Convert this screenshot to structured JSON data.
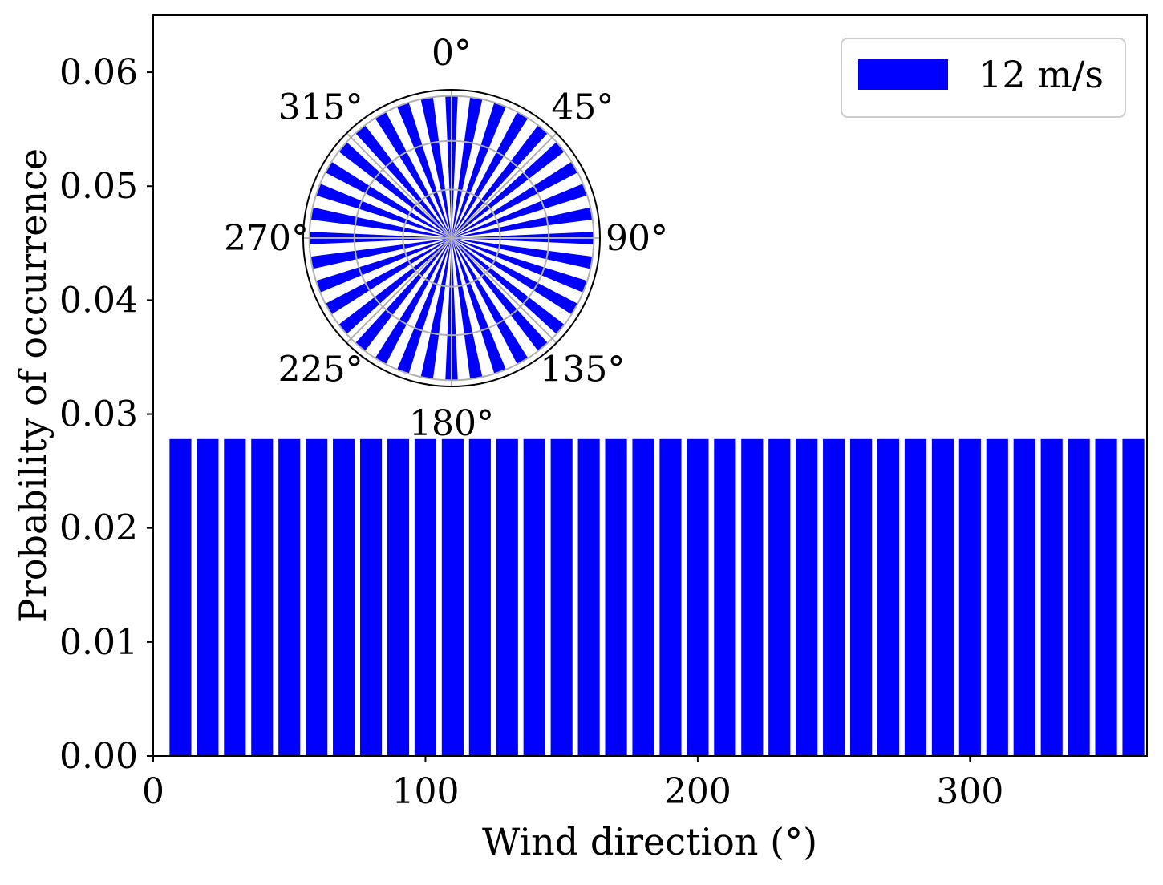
{
  "chart_data": {
    "type": "bar",
    "xlabel": "Wind direction (°)",
    "ylabel": "Probability of occurrence",
    "xlim": [
      0,
      365
    ],
    "ylim": [
      0,
      0.065
    ],
    "x_ticks": [
      {
        "value": 0,
        "label": "0"
      },
      {
        "value": 100,
        "label": "100"
      },
      {
        "value": 200,
        "label": "200"
      },
      {
        "value": 300,
        "label": "300"
      }
    ],
    "y_ticks": [
      {
        "value": 0.0,
        "label": "0.00"
      },
      {
        "value": 0.01,
        "label": "0.01"
      },
      {
        "value": 0.02,
        "label": "0.02"
      },
      {
        "value": 0.03,
        "label": "0.03"
      },
      {
        "value": 0.04,
        "label": "0.04"
      },
      {
        "value": 0.05,
        "label": "0.05"
      },
      {
        "value": 0.06,
        "label": "0.06"
      }
    ],
    "bar_width_deg": 8,
    "grid": false,
    "legend": {
      "position": "top-right",
      "entries": [
        "12 m/s"
      ]
    },
    "series": [
      {
        "name": "12 m/s",
        "color": "#0000ff",
        "x": [
          10,
          20,
          30,
          40,
          50,
          60,
          70,
          80,
          90,
          100,
          110,
          120,
          130,
          140,
          150,
          160,
          170,
          180,
          190,
          200,
          210,
          220,
          230,
          240,
          250,
          260,
          270,
          280,
          290,
          300,
          310,
          320,
          330,
          340,
          350,
          360
        ],
        "values": [
          0.0278,
          0.0278,
          0.0278,
          0.0278,
          0.0278,
          0.0278,
          0.0278,
          0.0278,
          0.0278,
          0.0278,
          0.0278,
          0.0278,
          0.0278,
          0.0278,
          0.0278,
          0.0278,
          0.0278,
          0.0278,
          0.0278,
          0.0278,
          0.0278,
          0.0278,
          0.0278,
          0.0278,
          0.0278,
          0.0278,
          0.0278,
          0.0278,
          0.0278,
          0.0278,
          0.0278,
          0.0278,
          0.0278,
          0.0278,
          0.0278,
          0.0278
        ]
      }
    ],
    "inset_polar": {
      "type": "polar-bar",
      "direction": "clockwise",
      "zero_location": "top",
      "angle_labels": [
        {
          "angle": 0,
          "label": "0°"
        },
        {
          "angle": 45,
          "label": "45°"
        },
        {
          "angle": 90,
          "label": "90°"
        },
        {
          "angle": 135,
          "label": "135°"
        },
        {
          "angle": 180,
          "label": "180°"
        },
        {
          "angle": 225,
          "label": "225°"
        },
        {
          "angle": 270,
          "label": "270°"
        },
        {
          "angle": 315,
          "label": "315°"
        }
      ],
      "bar_angular_width_deg": 5,
      "bar_value": 0.0278,
      "r_max": 0.029,
      "r_grid": [
        0.0095,
        0.019,
        0.0278
      ]
    }
  }
}
